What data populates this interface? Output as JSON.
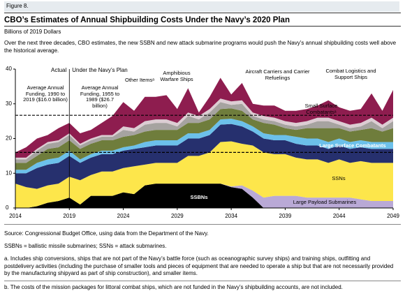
{
  "figure_label": "Figure 8.",
  "chart_data": {
    "type": "stacked-area",
    "title": "CBO’s Estimates of Annual Shipbuilding Costs Under the Navy’s 2020 Plan",
    "subtitle": "Billions of 2019 Dollars",
    "description": "Over the next three decades, CBO estimates, the new SSBN and new attack submarine programs would push the Navy’s annual shipbuilding costs well above the historical average.",
    "x": [
      2014,
      2015,
      2016,
      2017,
      2018,
      2019,
      2020,
      2021,
      2022,
      2023,
      2024,
      2025,
      2026,
      2027,
      2028,
      2029,
      2030,
      2031,
      2032,
      2033,
      2034,
      2035,
      2036,
      2037,
      2038,
      2039,
      2040,
      2041,
      2042,
      2043,
      2044,
      2045,
      2046,
      2047,
      2048,
      2049
    ],
    "xlim": [
      2014,
      2049
    ],
    "xticks": [
      2014,
      2019,
      2024,
      2029,
      2034,
      2039,
      2044,
      2049
    ],
    "ylim": [
      0,
      40
    ],
    "yticks": [
      0,
      10,
      20,
      30,
      40
    ],
    "divider": 2019,
    "divider_labels": [
      "Actual",
      "Under the Navy’s Plan"
    ],
    "reference_lines": [
      16.0,
      26.7
    ],
    "annotations": [
      "Average Annual Funding, 1990 to 2019 ($16.0 billion)",
      "Average Annual Funding, 1955 to 1989 ($26.7 billion)"
    ],
    "series": [
      {
        "name": "SSBNs",
        "color": "#000000",
        "values": [
          0,
          0,
          0.5,
          1.5,
          2,
          3,
          1,
          3.5,
          3.5,
          3.5,
          4.5,
          4,
          6.5,
          7,
          7,
          7,
          7,
          7,
          7,
          7,
          6,
          5.5,
          3,
          0,
          0,
          0,
          0,
          0,
          0,
          0,
          0,
          0,
          0,
          0,
          0,
          0
        ]
      },
      {
        "name": "Large Payload Submarines",
        "color": "#b9a9d6",
        "values": [
          0,
          0,
          0,
          0,
          0,
          0,
          0,
          0,
          0,
          0,
          0,
          0,
          0,
          0,
          0,
          0,
          0,
          0,
          0,
          0,
          0.2,
          1,
          2,
          3,
          3.5,
          3.5,
          3.5,
          3,
          3,
          3,
          3,
          3,
          2.5,
          2,
          2,
          2
        ]
      },
      {
        "name": "SSNs",
        "color": "#fde64b",
        "values": [
          7,
          6,
          5,
          5,
          5,
          6,
          7,
          6,
          7,
          7,
          7,
          8,
          6,
          6,
          6,
          6,
          8,
          8,
          9,
          12,
          13,
          12,
          13,
          13,
          12,
          12,
          11,
          11,
          11,
          10,
          11,
          10,
          11,
          11,
          11,
          11
        ]
      },
      {
        "name": "Large Surface Combatants",
        "color": "#26306e",
        "values": [
          3,
          4,
          6,
          6,
          6,
          6,
          5,
          5,
          5,
          5,
          5,
          5,
          5,
          5,
          5,
          5,
          5,
          5,
          5,
          5,
          5,
          5,
          4,
          4,
          4,
          4,
          4,
          4,
          4,
          4,
          4,
          4,
          4,
          4,
          4,
          4
        ]
      },
      {
        "name": "Small Surface Combatantsᵃ",
        "color": "#6cc0ea",
        "values": [
          1,
          1,
          1.5,
          1.5,
          1.5,
          1.5,
          1,
          1,
          1,
          1,
          1,
          1,
          1.5,
          1.5,
          1.5,
          1.5,
          1.5,
          1.5,
          1.5,
          1.5,
          1.5,
          1.5,
          1.5,
          1.5,
          1.5,
          1.5,
          2,
          2,
          2,
          2,
          2,
          2,
          2,
          2,
          2,
          2
        ]
      },
      {
        "name": "Aircraft Carriers and Carrier Refuelings",
        "color": "#6f7d3c",
        "values": [
          2,
          2,
          2,
          3,
          3,
          3,
          3,
          3,
          3,
          3,
          3,
          3,
          3,
          3,
          3,
          3,
          3,
          3,
          3,
          3,
          3,
          3,
          2,
          3,
          3,
          2,
          2,
          3,
          3,
          4,
          3,
          3,
          3,
          4,
          3,
          4
        ]
      },
      {
        "name": "Amphibious Warfare Ships",
        "color": "#a6a3a0",
        "values": [
          1,
          1,
          1.5,
          1.5,
          1.5,
          1.5,
          1,
          1,
          1,
          1,
          2,
          1,
          2,
          2,
          2,
          1,
          2,
          1,
          2,
          2,
          1,
          2,
          1,
          1,
          1,
          1,
          1,
          1,
          2,
          2,
          1,
          1,
          1,
          2,
          1,
          2
        ]
      },
      {
        "name": "Combat Logistics and Support Ships",
        "color": "#dccdd3",
        "values": [
          0.5,
          0.5,
          0.5,
          0.5,
          0.5,
          0.5,
          0.5,
          0.5,
          0.5,
          0.5,
          1,
          1,
          1,
          1,
          1,
          1,
          1,
          1,
          1,
          1,
          1,
          1,
          1,
          1,
          1,
          1,
          1,
          1,
          1,
          1,
          1,
          1,
          1,
          1,
          1,
          1
        ]
      },
      {
        "name": "Other Itemsᵃ",
        "color": "#8e1d4f",
        "values": [
          1.5,
          3,
          3,
          2,
          3.5,
          3,
          3,
          2.5,
          3.5,
          5.5,
          7,
          5,
          7,
          6.5,
          7,
          4,
          7,
          1,
          3.5,
          6,
          2,
          5,
          2.5,
          3,
          3.5,
          3,
          3.5,
          3.5,
          3.5,
          5,
          4,
          4,
          4,
          7,
          4,
          8
        ]
      }
    ]
  },
  "source": "Source: Congressional Budget Office, using data from the Department of the Navy.",
  "abbreviations": "SSBNs = ballistic missile submarines; SSNs = attack submarines.",
  "notes": [
    "a. Includes ship conversions, ships that are not part of the Navy’s battle force (such as oceanographic survey ships) and training ships, outfitting and postdelivery activities (including the purchase of smaller tools and pieces of equipment that are needed to operate a ship but that are not necessarily provided by the manufacturing shipyard as part of ship construction), and smaller items.",
    "b. The costs of the mission packages for littoral combat ships, which are not funded in the Navy’s shipbuilding accounts, are not included."
  ]
}
